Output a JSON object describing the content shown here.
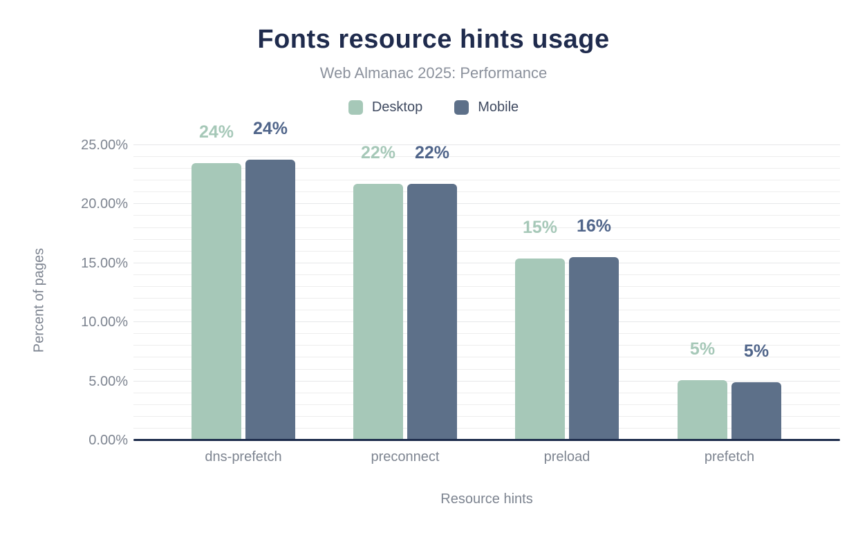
{
  "title": "Fonts resource hints usage",
  "subtitle": "Web Almanac 2025: Performance",
  "legend": {
    "position": "top",
    "items": [
      {
        "label": "Desktop",
        "color": "#a6c8b8"
      },
      {
        "label": "Mobile",
        "color": "#5d7089"
      }
    ]
  },
  "colors": {
    "title": "#1f2b4d",
    "subtitle": "#8b919c",
    "axis_line": "#1b2a4a",
    "tick_text": "#7d8490",
    "legend_text": "#3f4a60",
    "gridline": "#ededed",
    "desktop_bar": "#a6c8b8",
    "mobile_bar": "#5d7089",
    "desktop_label": "#a6c8b8",
    "mobile_label": "#50658a"
  },
  "chart_data": {
    "type": "bar",
    "title": "Fonts resource hints usage",
    "subtitle": "Web Almanac 2025: Performance",
    "categories": [
      "dns-prefetch",
      "preconnect",
      "preload",
      "prefetch"
    ],
    "series": [
      {
        "name": "Desktop",
        "color": "#a6c8b8",
        "label_color": "#a6c8b8",
        "values": [
          23.5,
          21.7,
          15.4,
          5.1
        ],
        "labels": [
          "24%",
          "22%",
          "15%",
          "5%"
        ]
      },
      {
        "name": "Mobile",
        "color": "#5d7089",
        "label_color": "#50658a",
        "values": [
          23.8,
          21.7,
          15.5,
          4.9
        ],
        "labels": [
          "24%",
          "22%",
          "16%",
          "5%"
        ]
      }
    ],
    "xlabel": "Resource hints",
    "ylabel": "Percent of pages",
    "ylim": [
      0,
      25
    ],
    "yticks": [
      {
        "value": 0,
        "label": "0.00%"
      },
      {
        "value": 5,
        "label": "5.00%"
      },
      {
        "value": 10,
        "label": "10.00%"
      },
      {
        "value": 15,
        "label": "15.00%"
      },
      {
        "value": 20,
        "label": "20.00%"
      },
      {
        "value": 25,
        "label": "25.00%"
      }
    ],
    "grid": "horizontal minor lines every 1%, on",
    "legend_position": "top-center"
  }
}
